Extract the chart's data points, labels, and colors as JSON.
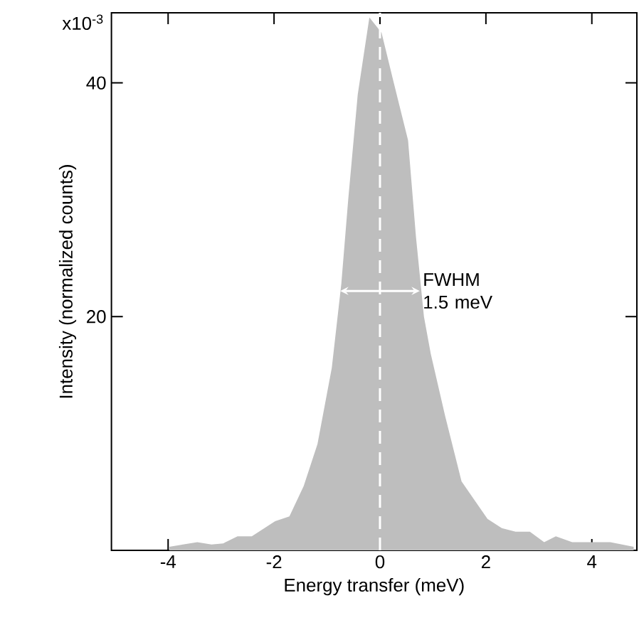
{
  "chart_data": {
    "type": "area",
    "xlabel": "Energy transfer (meV)",
    "ylabel": "Intensity (normalized counts)",
    "x": [
      -3.98,
      -3.45,
      -3.18,
      -2.96,
      -2.69,
      -2.42,
      -1.98,
      -1.71,
      -1.44,
      -1.18,
      -0.91,
      -0.73,
      -0.6,
      -0.42,
      -0.2,
      0.03,
      0.25,
      0.53,
      0.68,
      0.83,
      0.96,
      1.23,
      1.54,
      2.03,
      2.3,
      2.56,
      2.83,
      3.1,
      3.32,
      3.63,
      4.35,
      4.79
    ],
    "series": [
      {
        "color": "#bebebe",
        "values": [
          0.3,
          0.7,
          0.5,
          0.6,
          1.2,
          1.2,
          2.5,
          2.9,
          5.5,
          9.1,
          15.6,
          22.8,
          30,
          39,
          45.6,
          44.3,
          40.2,
          35.1,
          26.8,
          20,
          16.8,
          11.5,
          5.9,
          2.7,
          1.9,
          1.6,
          1.6,
          0.7,
          1.2,
          0.7,
          0.7,
          0.3
        ]
      }
    ],
    "xlim": [
      -5.07,
      4.85
    ],
    "ylim": [
      0,
      46
    ],
    "xticks": [
      -4,
      -2,
      0,
      2,
      4
    ],
    "yticks": [
      20,
      40
    ],
    "ref_lines": [
      {
        "axis": "x",
        "value": 0,
        "color": "#ffffff",
        "line_style": "dashed"
      }
    ],
    "annotations": [
      "x10$^{-3}$",
      {
        "text": "FWHM 1.5 meV",
        "x": 0.75,
        "y": 22.2
      }
    ]
  }
}
